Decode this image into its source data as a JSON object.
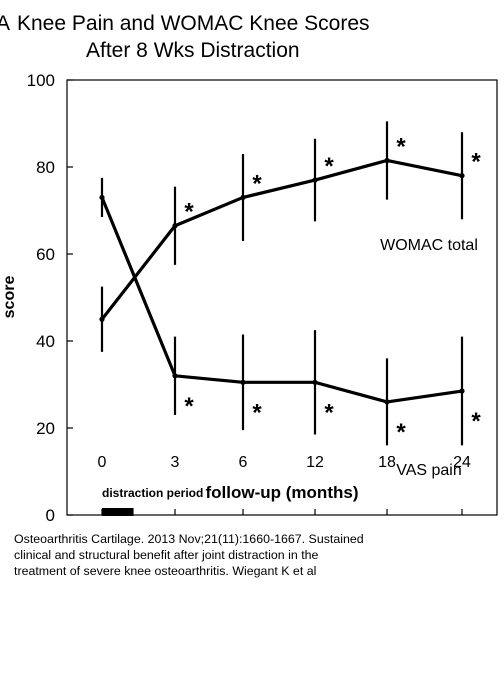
{
  "panel_letter": "A",
  "title_lines": [
    "Knee Pain and WOMAC Knee Scores",
    "After 8 Wks Distraction"
  ],
  "citation_lines": [
    "Osteoarthritis Cartilage. 2013 Nov;21(11):1660-1667. Sustained",
    "clinical and structural benefit after joint distraction in the",
    "treatment of severe knee osteoarthritis. Wiegant K et al"
  ],
  "chart_data": {
    "type": "line",
    "title": "Knee Pain and WOMAC Knee Scores After 8 Wks Distraction",
    "xlabel": "follow-up (months)",
    "ylabel": "score",
    "categories": [
      "0",
      "3",
      "6",
      "12",
      "18",
      "24"
    ],
    "ylim": [
      0,
      100
    ],
    "yticks": [
      0,
      20,
      40,
      60,
      80,
      100
    ],
    "grid": false,
    "series": [
      {
        "name": "WOMAC total",
        "values": [
          45,
          66.5,
          73,
          77,
          81.5,
          78
        ],
        "error": [
          7.5,
          9,
          10,
          9.5,
          9,
          10
        ],
        "significant": [
          false,
          true,
          true,
          true,
          true,
          true
        ]
      },
      {
        "name": "VAS pain",
        "values": [
          73,
          32,
          30.5,
          30.5,
          26,
          28.5
        ],
        "error": [
          4.5,
          9,
          11,
          12,
          10,
          12.5
        ],
        "significant": [
          false,
          true,
          true,
          true,
          true,
          true
        ]
      }
    ],
    "significance_marker": "*",
    "annotations": [
      {
        "text": "distraction period",
        "x_start": "0",
        "x_end_fraction": 0.6
      }
    ],
    "colors": {
      "line": "#000000",
      "text": "#000000"
    }
  }
}
